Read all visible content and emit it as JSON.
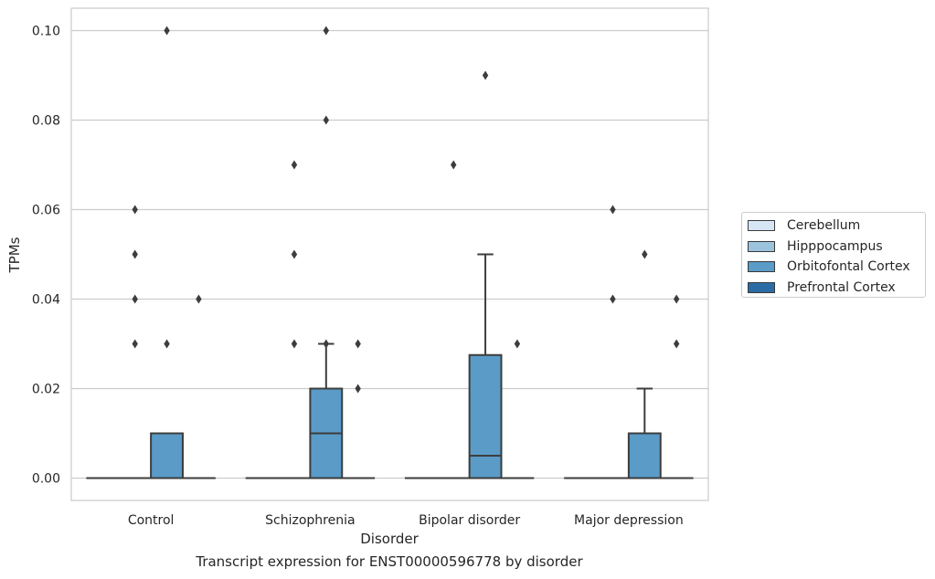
{
  "chart_data": {
    "type": "boxplot",
    "xlabel": "Disorder",
    "ylabel": "TPMs",
    "caption": "Transcript expression for ENST00000596778 by disorder",
    "categories": [
      "Control",
      "Schizophrenia",
      "Bipolar disorder",
      "Major depression"
    ],
    "ylim": [
      -0.005,
      0.105
    ],
    "yticks": [
      0.0,
      0.02,
      0.04,
      0.06,
      0.08,
      0.1
    ],
    "ytick_labels": [
      "0.00",
      "0.02",
      "0.04",
      "0.06",
      "0.08",
      "0.10"
    ],
    "grid": true,
    "legend_position": "right",
    "series": [
      {
        "name": "Cerebellum",
        "color": "#d6e6f4",
        "boxes": [
          {
            "q1": 0,
            "median": 0,
            "q3": 0,
            "whisker_low": 0,
            "whisker_high": 0,
            "outliers": []
          },
          {
            "q1": 0,
            "median": 0,
            "q3": 0,
            "whisker_low": 0,
            "whisker_high": 0,
            "outliers": []
          },
          {
            "q1": 0,
            "median": 0,
            "q3": 0,
            "whisker_low": 0,
            "whisker_high": 0,
            "outliers": []
          },
          {
            "q1": 0,
            "median": 0,
            "q3": 0,
            "whisker_low": 0,
            "whisker_high": 0,
            "outliers": []
          }
        ]
      },
      {
        "name": "Hipppocampus",
        "color": "#9cc3de",
        "boxes": [
          {
            "q1": 0,
            "median": 0,
            "q3": 0,
            "whisker_low": 0,
            "whisker_high": 0,
            "outliers": [
              0.03,
              0.04,
              0.05,
              0.06
            ]
          },
          {
            "q1": 0,
            "median": 0,
            "q3": 0,
            "whisker_low": 0,
            "whisker_high": 0,
            "outliers": [
              0.03,
              0.05,
              0.07
            ]
          },
          {
            "q1": 0,
            "median": 0,
            "q3": 0,
            "whisker_low": 0,
            "whisker_high": 0,
            "outliers": [
              0.07
            ]
          },
          {
            "q1": 0,
            "median": 0,
            "q3": 0,
            "whisker_low": 0,
            "whisker_high": 0,
            "outliers": [
              0.04,
              0.06
            ]
          }
        ]
      },
      {
        "name": "Orbitofontal Cortex",
        "color": "#5a9bc8",
        "boxes": [
          {
            "q1": 0,
            "median": 0,
            "q3": 0.01,
            "whisker_low": 0,
            "whisker_high": 0.01,
            "outliers": [
              0.03,
              0.1
            ]
          },
          {
            "q1": 0,
            "median": 0.01,
            "q3": 0.02,
            "whisker_low": 0,
            "whisker_high": 0.03,
            "outliers": [
              0.03,
              0.08,
              0.1
            ]
          },
          {
            "q1": 0,
            "median": 0.005,
            "q3": 0.0275,
            "whisker_low": 0,
            "whisker_high": 0.05,
            "outliers": [
              0.09
            ]
          },
          {
            "q1": 0,
            "median": 0,
            "q3": 0.01,
            "whisker_low": 0,
            "whisker_high": 0.02,
            "outliers": [
              0.05
            ]
          }
        ]
      },
      {
        "name": "Prefrontal Cortex",
        "color": "#2b6ca6",
        "boxes": [
          {
            "q1": 0,
            "median": 0,
            "q3": 0,
            "whisker_low": 0,
            "whisker_high": 0,
            "outliers": [
              0.04
            ]
          },
          {
            "q1": 0,
            "median": 0,
            "q3": 0,
            "whisker_low": 0,
            "whisker_high": 0,
            "outliers": [
              0.02,
              0.03
            ]
          },
          {
            "q1": 0,
            "median": 0,
            "q3": 0,
            "whisker_low": 0,
            "whisker_high": 0,
            "outliers": [
              0.03
            ]
          },
          {
            "q1": 0,
            "median": 0,
            "q3": 0,
            "whisker_low": 0,
            "whisker_high": 0,
            "outliers": [
              0.03,
              0.04
            ]
          }
        ]
      }
    ]
  }
}
